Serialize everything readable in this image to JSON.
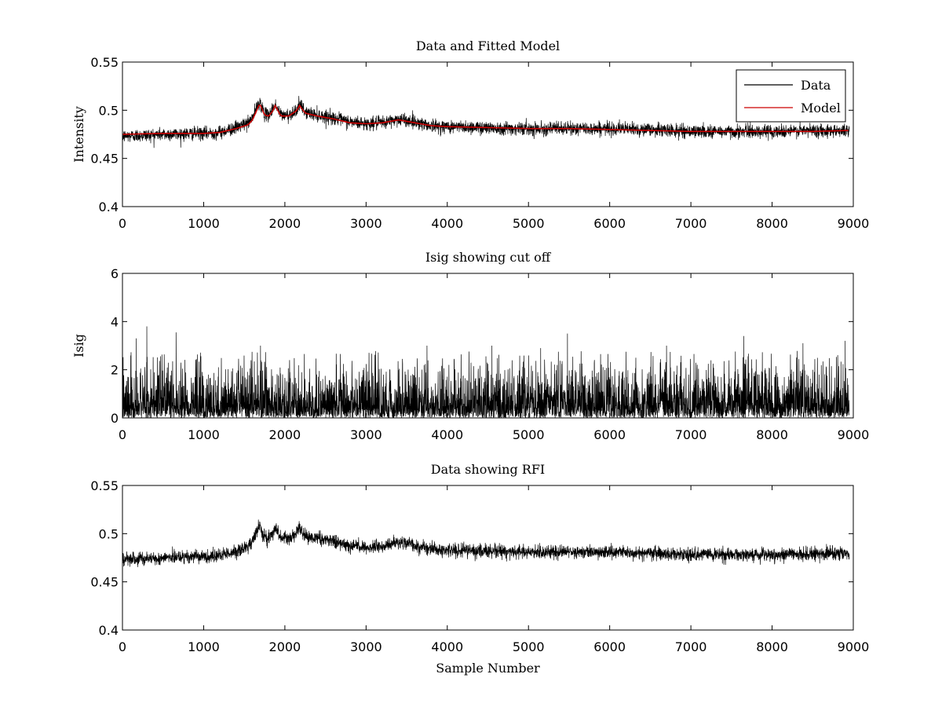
{
  "colors": {
    "data": "#000000",
    "model": "#cc0000",
    "background": "#ffffff"
  },
  "chart_data": [
    {
      "type": "line",
      "title": "Data and Fitted Model",
      "xlabel": "",
      "ylabel": "Intensity",
      "xlim": [
        0,
        9000
      ],
      "ylim": [
        0.4,
        0.55
      ],
      "xticks": [
        "0",
        "1000",
        "2000",
        "3000",
        "4000",
        "5000",
        "6000",
        "7000",
        "8000",
        "9000"
      ],
      "yticks": [
        "0.4",
        "0.45",
        "0.5",
        "0.55"
      ],
      "grid": false,
      "legend": {
        "position": "top-right",
        "entries": [
          "Data",
          "Model"
        ]
      },
      "series": [
        {
          "name": "Data",
          "x": [
            0,
            500,
            1000,
            1200,
            1400,
            1550,
            1600,
            1650,
            1690,
            1750,
            1800,
            1850,
            1880,
            1950,
            2050,
            2150,
            2180,
            2250,
            2400,
            2600,
            2800,
            3000,
            3200,
            3400,
            3600,
            3800,
            4000,
            4500,
            5000,
            5500,
            6000,
            6500,
            7000,
            7500,
            8000,
            8500,
            8950
          ],
          "y": [
            0.473,
            0.475,
            0.476,
            0.477,
            0.482,
            0.487,
            0.492,
            0.502,
            0.509,
            0.496,
            0.495,
            0.501,
            0.506,
            0.495,
            0.495,
            0.501,
            0.506,
            0.498,
            0.495,
            0.492,
            0.488,
            0.486,
            0.487,
            0.491,
            0.488,
            0.484,
            0.483,
            0.482,
            0.481,
            0.481,
            0.481,
            0.48,
            0.478,
            0.478,
            0.478,
            0.479,
            0.479
          ],
          "noise": 0.0045
        },
        {
          "name": "Model",
          "x": [
            0,
            500,
            1000,
            1200,
            1400,
            1550,
            1600,
            1650,
            1690,
            1750,
            1800,
            1850,
            1880,
            1950,
            2050,
            2150,
            2180,
            2250,
            2400,
            2600,
            2800,
            3000,
            3200,
            3400,
            3600,
            3800,
            4000,
            4500,
            5000,
            5500,
            6000,
            6500,
            7000,
            7500,
            8000,
            8500,
            8950
          ],
          "y": [
            0.475,
            0.476,
            0.476,
            0.477,
            0.481,
            0.485,
            0.49,
            0.499,
            0.507,
            0.495,
            0.494,
            0.499,
            0.505,
            0.494,
            0.494,
            0.5,
            0.505,
            0.497,
            0.494,
            0.491,
            0.487,
            0.486,
            0.487,
            0.49,
            0.487,
            0.484,
            0.483,
            0.482,
            0.481,
            0.481,
            0.48,
            0.479,
            0.478,
            0.478,
            0.478,
            0.478,
            0.479
          ]
        }
      ]
    },
    {
      "type": "line",
      "title": "Isig showing cut off",
      "xlabel": "",
      "ylabel": "Isig",
      "xlim": [
        0,
        9000
      ],
      "ylim": [
        0,
        6
      ],
      "xticks": [
        "0",
        "1000",
        "2000",
        "3000",
        "4000",
        "5000",
        "6000",
        "7000",
        "8000",
        "9000"
      ],
      "yticks": [
        "0",
        "2",
        "4",
        "6"
      ],
      "grid": false,
      "series": [
        {
          "name": "",
          "x": [
            0,
            300,
            1000,
            2000,
            3000,
            4000,
            5000,
            5500,
            6000,
            7000,
            7650,
            8000,
            8950
          ],
          "y": [
            0.7,
            0.75,
            0.7,
            0.7,
            0.7,
            0.7,
            0.7,
            0.75,
            0.7,
            0.7,
            0.7,
            0.7,
            0.7
          ],
          "peaks": [
            [
              170,
              3.3
            ],
            [
              300,
              3.8
            ],
            [
              660,
              3.55
            ],
            [
              1700,
              3.0
            ],
            [
              3750,
              3.0
            ],
            [
              4550,
              3.0
            ],
            [
              5150,
              2.9
            ],
            [
              5480,
              3.5
            ],
            [
              6700,
              3.0
            ],
            [
              7650,
              3.4
            ],
            [
              8380,
              3.1
            ],
            [
              8900,
              3.2
            ]
          ]
        }
      ]
    },
    {
      "type": "line",
      "title": "Data showing RFI",
      "xlabel": "Sample Number",
      "ylabel": "",
      "xlim": [
        0,
        9000
      ],
      "ylim": [
        0.4,
        0.55
      ],
      "xticks": [
        "0",
        "1000",
        "2000",
        "3000",
        "4000",
        "5000",
        "6000",
        "7000",
        "8000",
        "9000"
      ],
      "yticks": [
        "0.4",
        "0.45",
        "0.5",
        "0.55"
      ],
      "grid": false,
      "series": [
        {
          "name": "",
          "x": [
            0,
            500,
            1000,
            1200,
            1400,
            1550,
            1600,
            1650,
            1690,
            1750,
            1800,
            1850,
            1880,
            1950,
            2050,
            2150,
            2180,
            2250,
            2400,
            2600,
            2800,
            3000,
            3200,
            3400,
            3600,
            3800,
            4000,
            4500,
            5000,
            5500,
            6000,
            6500,
            7000,
            7500,
            8000,
            8500,
            8950
          ],
          "y": [
            0.473,
            0.475,
            0.476,
            0.477,
            0.482,
            0.487,
            0.492,
            0.502,
            0.509,
            0.496,
            0.495,
            0.501,
            0.506,
            0.495,
            0.495,
            0.501,
            0.506,
            0.498,
            0.495,
            0.492,
            0.488,
            0.486,
            0.487,
            0.491,
            0.488,
            0.484,
            0.483,
            0.482,
            0.481,
            0.481,
            0.481,
            0.48,
            0.478,
            0.478,
            0.478,
            0.479,
            0.479
          ],
          "noise": 0.0045
        }
      ]
    }
  ]
}
